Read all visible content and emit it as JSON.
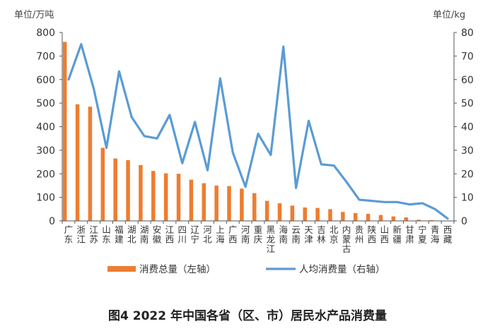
{
  "chart_data": {
    "type": "bar+line",
    "caption": "图4   2022 年中国各省（区、市）居民水产品消费量",
    "left_unit": "单位/万吨",
    "right_unit": "单位/kg",
    "left_ylim": [
      0,
      800
    ],
    "left_ticks": [
      "0",
      "100",
      "200",
      "300",
      "400",
      "500",
      "600",
      "700",
      "800"
    ],
    "right_ylim": [
      0,
      80
    ],
    "right_ticks": [
      "0",
      "10",
      "20",
      "30",
      "40",
      "50",
      "60",
      "70",
      "80"
    ],
    "categories": [
      "广东",
      "浙江",
      "江苏",
      "山东",
      "福建",
      "湖北",
      "湖南",
      "安徽",
      "江西",
      "四川",
      "辽宁",
      "河北",
      "上海",
      "广西",
      "河南",
      "重庆",
      "黑龙江",
      "海南",
      "云南",
      "天津",
      "吉林",
      "北京",
      "内蒙古",
      "贵州",
      "陕西",
      "山西",
      "新疆",
      "甘肃",
      "宁夏",
      "青海",
      "西藏"
    ],
    "series": [
      {
        "name": "消费总量（左轴）",
        "type": "bar",
        "axis": "left",
        "color": "#ED7D31",
        "values": [
          760,
          495,
          485,
          310,
          265,
          258,
          237,
          212,
          202,
          200,
          175,
          160,
          150,
          148,
          137,
          118,
          85,
          75,
          65,
          57,
          55,
          50,
          38,
          33,
          30,
          25,
          19,
          15,
          5,
          3,
          1
        ]
      },
      {
        "name": "人均消费量（右轴）",
        "type": "line",
        "axis": "right",
        "color": "#5B9BD5",
        "values": [
          60,
          75,
          56,
          31,
          63.5,
          44,
          36,
          35,
          45,
          24.5,
          42,
          21.5,
          60.5,
          29,
          14.5,
          37,
          28,
          74,
          14,
          42.5,
          24,
          23.5,
          16.5,
          9,
          8.5,
          8,
          8,
          7,
          7.5,
          5,
          1
        ]
      }
    ],
    "grid": false,
    "legend_position": "bottom"
  }
}
